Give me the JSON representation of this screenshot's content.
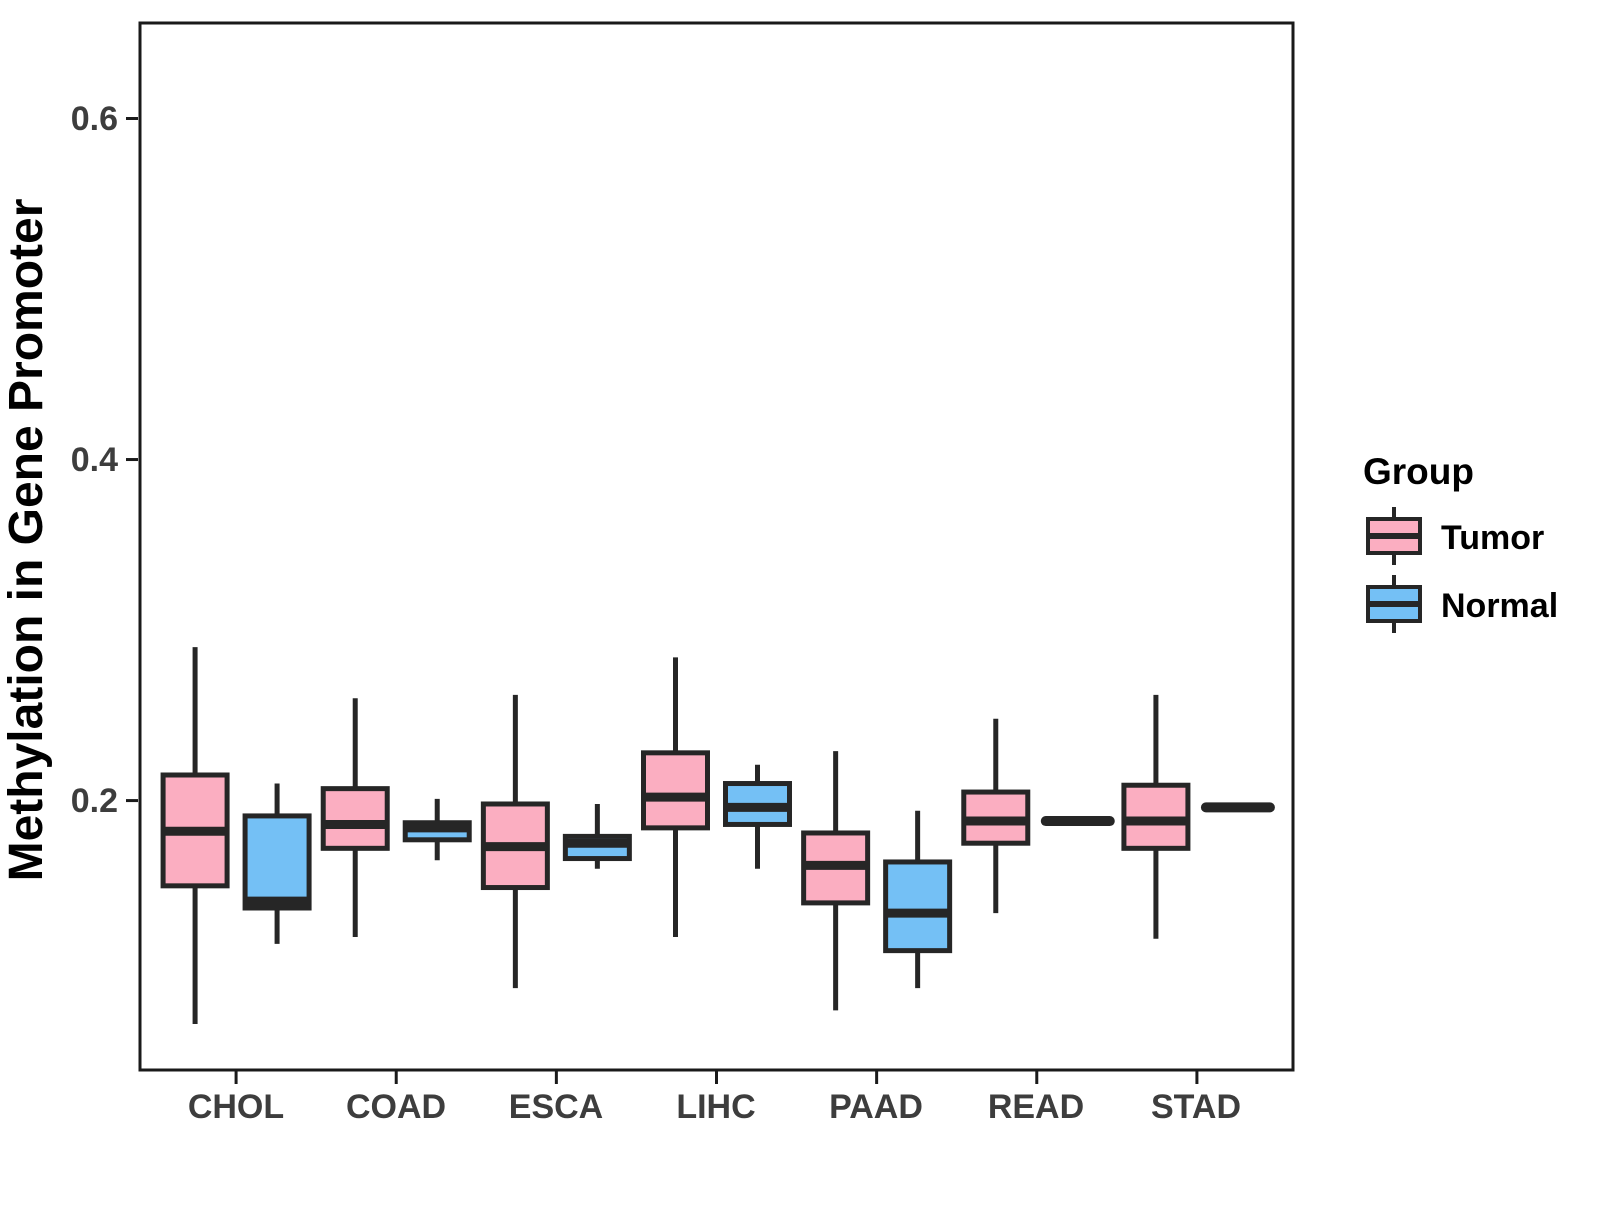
{
  "figure": {
    "y_tick_labels": [
      "0.2",
      "0.4",
      "0.6"
    ]
  },
  "chart_data": {
    "type": "boxplot",
    "title": "",
    "xlabel": "",
    "ylabel": "Methylation in Gene Promoter",
    "categories": [
      "CHOL",
      "COAD",
      "ESCA",
      "LIHC",
      "PAAD",
      "READ",
      "STAD"
    ],
    "y_ticks": [
      0.2,
      0.4,
      0.6
    ],
    "ylim": [
      0.042,
      0.656
    ],
    "grid": false,
    "legend": {
      "title": "Group",
      "position": "right"
    },
    "colors": {
      "tumor_fill": "#FBAEC1",
      "normal_fill": "#74C0F5",
      "box_stroke": "#262626",
      "panel_border": "#1A1A1A",
      "axis_text": "#3D3D3D"
    },
    "series": [
      {
        "name": "Tumor",
        "fill": "#FBAEC1",
        "boxes": [
          {
            "category": "CHOL",
            "min": 0.069,
            "q1": 0.15,
            "median": 0.182,
            "q3": 0.215,
            "max": 0.29
          },
          {
            "category": "COAD",
            "min": 0.12,
            "q1": 0.172,
            "median": 0.186,
            "q3": 0.207,
            "max": 0.26
          },
          {
            "category": "ESCA",
            "min": 0.09,
            "q1": 0.149,
            "median": 0.173,
            "q3": 0.198,
            "max": 0.262
          },
          {
            "category": "LIHC",
            "min": 0.12,
            "q1": 0.184,
            "median": 0.202,
            "q3": 0.228,
            "max": 0.284
          },
          {
            "category": "PAAD",
            "min": 0.077,
            "q1": 0.14,
            "median": 0.162,
            "q3": 0.181,
            "max": 0.229
          },
          {
            "category": "READ",
            "min": 0.134,
            "q1": 0.175,
            "median": 0.188,
            "q3": 0.205,
            "max": 0.248
          },
          {
            "category": "STAD",
            "min": 0.119,
            "q1": 0.172,
            "median": 0.188,
            "q3": 0.209,
            "max": 0.262
          }
        ]
      },
      {
        "name": "Normal",
        "fill": "#74C0F5",
        "boxes": [
          {
            "category": "CHOL",
            "min": 0.116,
            "q1": 0.137,
            "median": 0.141,
            "q3": 0.191,
            "max": 0.21
          },
          {
            "category": "COAD",
            "min": 0.165,
            "q1": 0.177,
            "median": 0.184,
            "q3": 0.187,
            "max": 0.201
          },
          {
            "category": "ESCA",
            "min": 0.16,
            "q1": 0.166,
            "median": 0.175,
            "q3": 0.179,
            "max": 0.198
          },
          {
            "category": "LIHC",
            "min": 0.16,
            "q1": 0.186,
            "median": 0.196,
            "q3": 0.21,
            "max": 0.221
          },
          {
            "category": "PAAD",
            "min": 0.09,
            "q1": 0.112,
            "median": 0.134,
            "q3": 0.164,
            "max": 0.194
          },
          {
            "category": "READ",
            "min": 0.188,
            "q1": 0.188,
            "median": 0.188,
            "q3": 0.188,
            "max": 0.188
          },
          {
            "category": "STAD",
            "min": 0.196,
            "q1": 0.196,
            "median": 0.196,
            "q3": 0.196,
            "max": 0.196
          }
        ]
      }
    ]
  }
}
